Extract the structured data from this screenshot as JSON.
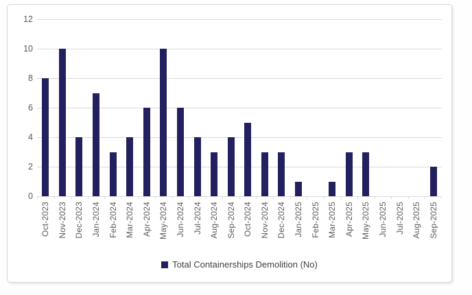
{
  "chart": {
    "legend_label": "Total Containerships Demolition (No)",
    "colors": {
      "bar": "#23205F",
      "gridline": "#D9D9D9",
      "axis_text": "#595959",
      "legend_text": "#404040",
      "frame_border": "#D6D6D6",
      "background": "#FFFFFF"
    }
  },
  "chart_data": {
    "type": "bar",
    "title": "",
    "xlabel": "",
    "ylabel": "",
    "categories": [
      "Oct-2023",
      "Nov-2023",
      "Dec-2023",
      "Jan-2024",
      "Feb-2024",
      "Mar-2024",
      "Apr-2024",
      "May-2024",
      "Jun-2024",
      "Jul-2024",
      "Aug-2024",
      "Sep-2024",
      "Oct-2024",
      "Nov-2024",
      "Dec-2024",
      "Jan-2025",
      "Feb-2025",
      "Mar-2025",
      "Apr-2025",
      "May-2025",
      "Jun-2025",
      "Jul-2025",
      "Aug-2025",
      "Sep-2025"
    ],
    "values": [
      8,
      10,
      4,
      7,
      3,
      4,
      6,
      10,
      6,
      4,
      3,
      4,
      5,
      3,
      3,
      1,
      0,
      1,
      3,
      3,
      0,
      0,
      0,
      2
    ],
    "series_name": "Total Containerships Demolition (No)",
    "ylim": [
      0,
      12
    ],
    "yticks": [
      0,
      2,
      4,
      6,
      8,
      10,
      12
    ],
    "grid": "horizontal",
    "legend_position": "bottom",
    "x_label_rotation_deg": 90
  }
}
